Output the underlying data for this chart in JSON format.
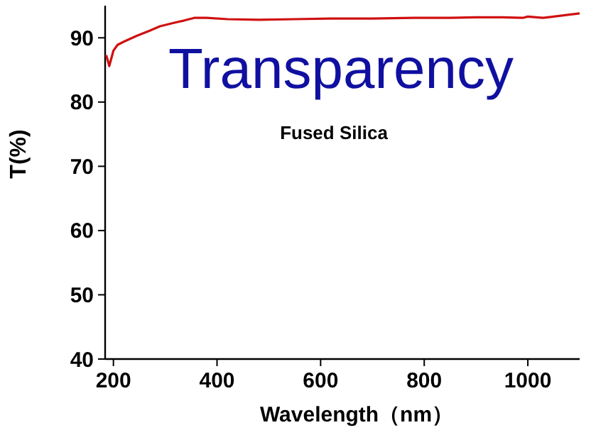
{
  "chart_data": {
    "type": "line",
    "title": "Transparency",
    "xlabel": "Wavelength（nm）",
    "ylabel": "T(%)",
    "annotations": [
      "Fused Silica"
    ],
    "x": [
      186,
      189,
      192,
      196,
      200,
      208,
      220,
      245,
      270,
      290,
      315,
      337,
      356,
      380,
      420,
      480,
      550,
      620,
      700,
      780,
      850,
      900,
      950,
      990,
      1000,
      1030,
      1050,
      1080,
      1100
    ],
    "series": [
      {
        "color": "#d01010",
        "values": [
          87.3,
          86.5,
          85.6,
          86.8,
          88.0,
          88.9,
          89.4,
          90.3,
          91.1,
          91.8,
          92.3,
          92.7,
          93.1,
          93.1,
          92.9,
          92.8,
          92.9,
          93.0,
          93.0,
          93.1,
          93.1,
          93.2,
          93.2,
          93.1,
          93.3,
          93.1,
          93.3,
          93.6,
          93.8
        ]
      }
    ],
    "xlim": [
      184,
      1100
    ],
    "ylim": [
      40,
      95
    ],
    "xticks": [
      200,
      400,
      600,
      800,
      1000
    ],
    "yticks": [
      40,
      50,
      60,
      70,
      80,
      90
    ],
    "grid": false
  }
}
